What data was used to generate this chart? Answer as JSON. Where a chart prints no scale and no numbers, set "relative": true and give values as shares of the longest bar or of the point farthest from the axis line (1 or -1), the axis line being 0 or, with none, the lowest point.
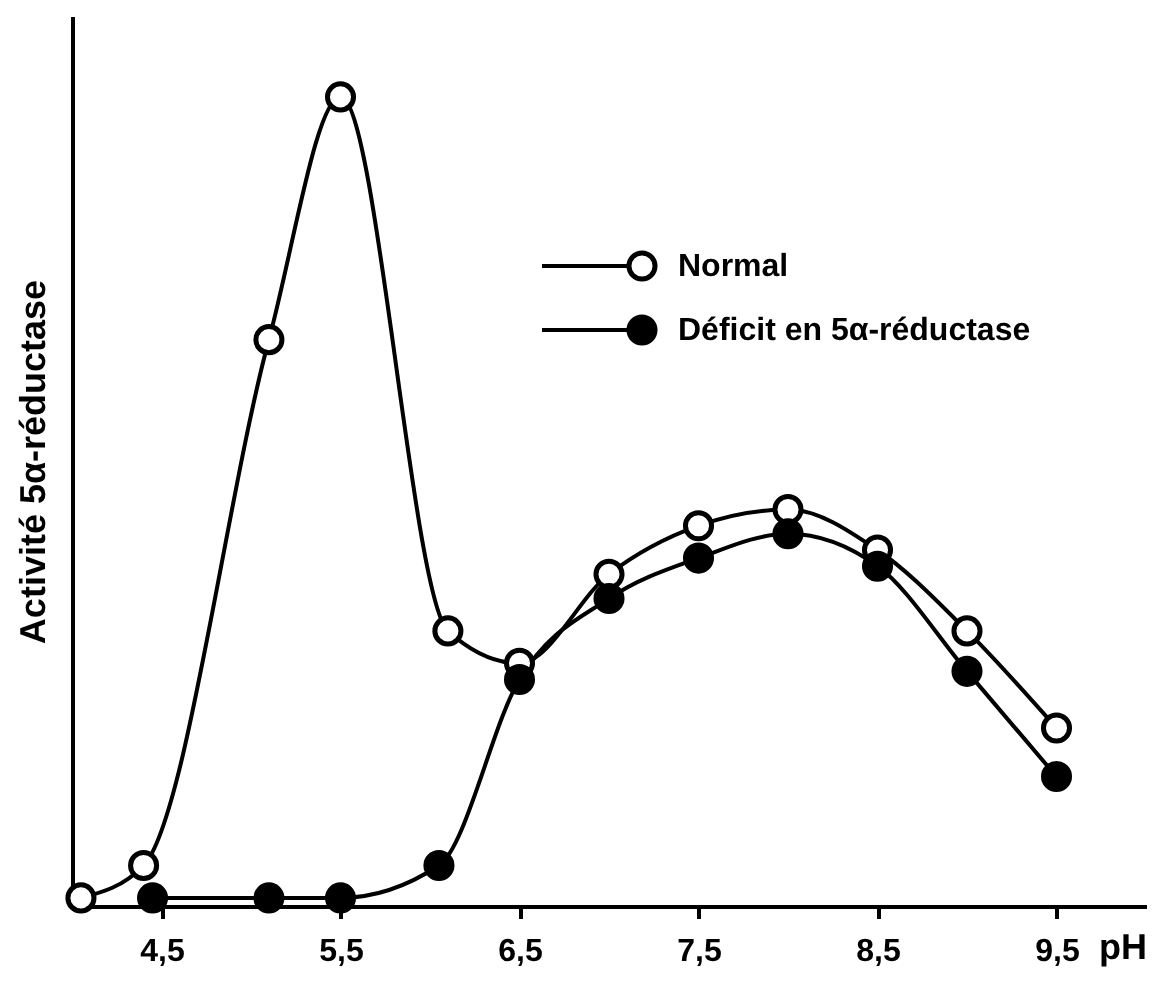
{
  "chart_data": {
    "type": "line",
    "relative": true,
    "xlabel": "pH",
    "ylabel": "Activité 5α-réductase",
    "xlim": [
      4.0,
      10.0
    ],
    "xticks": [
      {
        "value": 4.5,
        "label": "4,5"
      },
      {
        "value": 5.5,
        "label": "5,5"
      },
      {
        "value": 6.5,
        "label": "6,5"
      },
      {
        "value": 7.5,
        "label": "7,5"
      },
      {
        "value": 8.5,
        "label": "8,5"
      },
      {
        "value": 9.5,
        "label": "9,5"
      }
    ],
    "series": [
      {
        "name": "Normal",
        "color": "#000000",
        "x": [
          4.05,
          4.4,
          5.1,
          5.5,
          6.1,
          6.5,
          7.0,
          7.5,
          8.0,
          8.5,
          9.0,
          9.5
        ],
        "values": [
          0.01,
          0.05,
          0.7,
          1.0,
          0.34,
          0.3,
          0.41,
          0.47,
          0.49,
          0.44,
          0.34,
          0.22
        ]
      },
      {
        "name": "Déficit en 5α-réductase",
        "color": "#000000",
        "x": [
          4.45,
          5.1,
          5.5,
          6.05,
          6.5,
          7.0,
          7.5,
          8.0,
          8.5,
          9.0,
          9.5
        ],
        "values": [
          0.01,
          0.01,
          0.01,
          0.05,
          0.28,
          0.38,
          0.43,
          0.46,
          0.42,
          0.29,
          0.16
        ]
      }
    ],
    "marker": "circle",
    "line_style": "solid",
    "grid": false,
    "legend": "top right"
  }
}
